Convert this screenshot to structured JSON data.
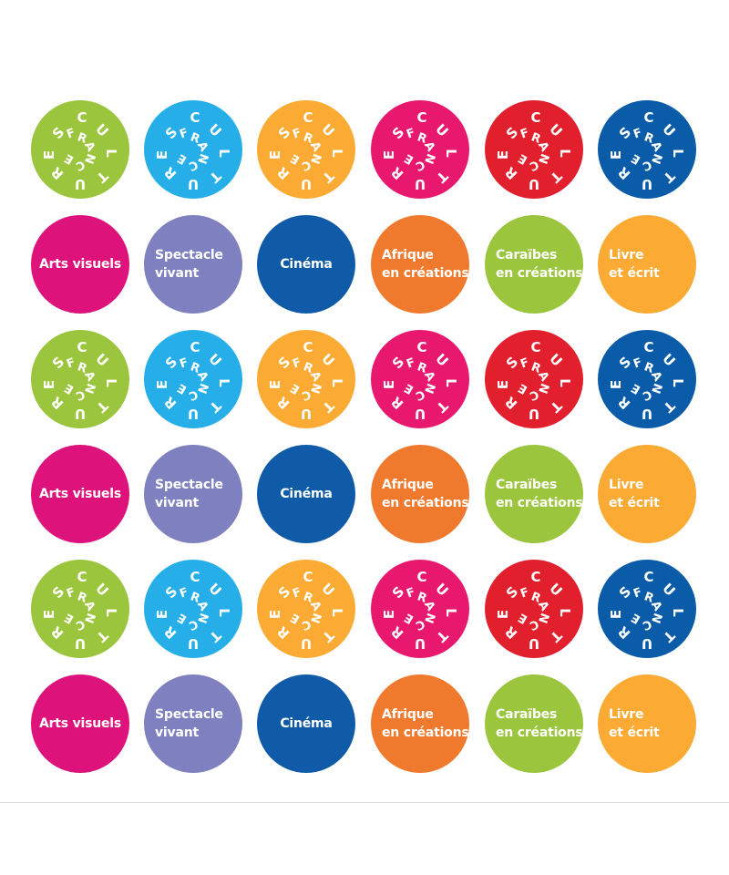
{
  "logo": {
    "outer_letters": [
      "C",
      "U",
      "L",
      "T",
      "U",
      "R",
      "E",
      "S"
    ],
    "inner_letters": [
      "F",
      "R",
      "A",
      "N",
      "C",
      "E"
    ],
    "colors": [
      {
        "name": "green",
        "hex": "#9bc53d"
      },
      {
        "name": "sky-blue",
        "hex": "#26aee8"
      },
      {
        "name": "amber",
        "hex": "#fbaa33"
      },
      {
        "name": "raspberry",
        "hex": "#e8186e"
      },
      {
        "name": "red",
        "hex": "#e11f2d"
      },
      {
        "name": "royal-blue",
        "hex": "#0b5ca8"
      }
    ]
  },
  "categories": [
    {
      "id": "arts-visuels",
      "lines": [
        "Arts visuels"
      ],
      "color": "#dd137b"
    },
    {
      "id": "spectacle-vivant",
      "lines": [
        "Spectacle",
        "vivant"
      ],
      "color": "#7e80bf"
    },
    {
      "id": "cinema",
      "lines": [
        "Cinéma"
      ],
      "color": "#0f5ba7"
    },
    {
      "id": "afrique-en-creations",
      "lines": [
        "Afrique",
        "en créations"
      ],
      "color": "#ef7a2e"
    },
    {
      "id": "caraibes-en-creations",
      "lines": [
        "Caraïbes",
        "en créations"
      ],
      "color": "#9bc53d"
    },
    {
      "id": "livre-et-ecrit",
      "lines": [
        "Livre",
        "et écrit"
      ],
      "color": "#fbaa33"
    }
  ],
  "row_pattern": [
    "logo",
    "categories",
    "logo",
    "categories",
    "logo",
    "categories"
  ]
}
